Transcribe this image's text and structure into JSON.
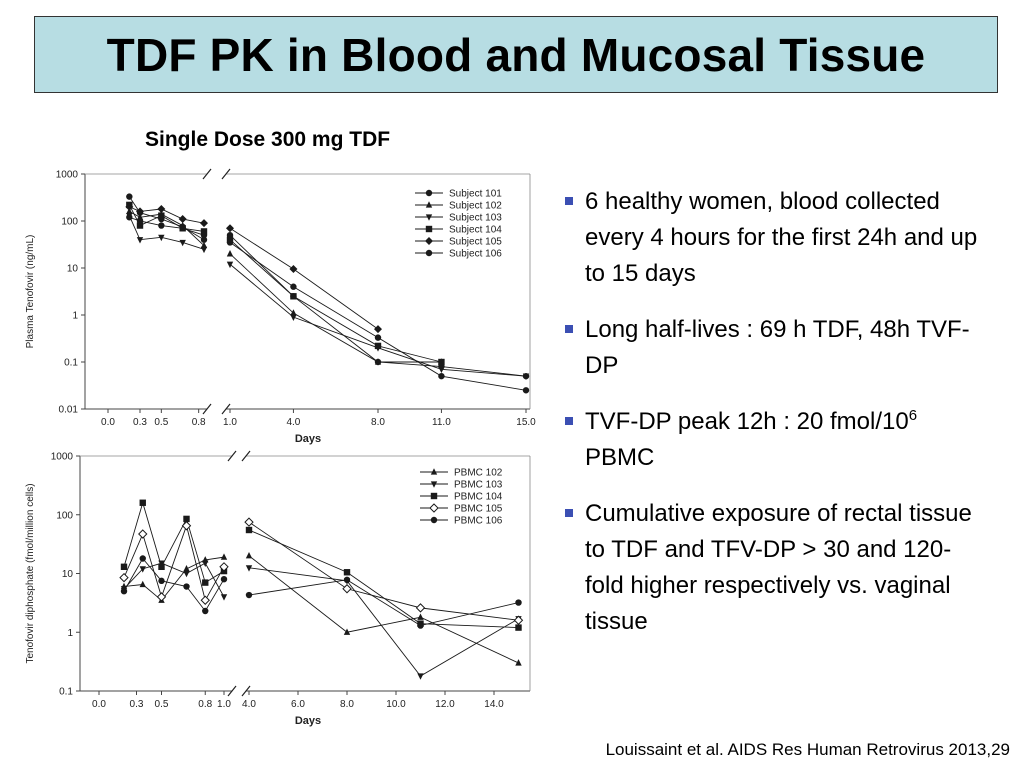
{
  "title": "TDF PK in Blood and Mucosal Tissue",
  "subtitle": "Single Dose 300 mg TDF",
  "bullets": [
    {
      "text": "6 healthy women, blood collected every 4 hours for the first 24h and up to 15 days"
    },
    {
      "text": "Long half-lives : 69 h TDF, 48h TVF-DP"
    },
    {
      "text_before": "TVF-DP peak 12h : 20 fmol/10",
      "sup": "6",
      "text_after": " PBMC"
    },
    {
      "text": "Cumulative exposure of rectal tissue to TDF and TFV-DP > 30 and 120-fold higher respectively vs. vaginal tissue"
    }
  ],
  "citation": "Louissaint et al. AIDS Res Human Retrovirus 2013,29",
  "colors": {
    "title_bg": "#b7dde3",
    "bullet": "#3b4fb3",
    "series": "#1a1a1a"
  },
  "chart_data": [
    {
      "type": "line",
      "ylabel": "Plasma Tenofovir (ng/mL)",
      "xlabel": "Days",
      "yscale": "log",
      "ylim": [
        0.01,
        1000
      ],
      "ytick_labels": [
        "1000",
        "100",
        "10",
        "1",
        "0.1",
        "0.01"
      ],
      "xaxis_break": "between 0.8 and 1.0",
      "x_left": [
        0.2,
        0.3,
        0.5,
        0.7,
        0.9
      ],
      "x_left_ticks": [
        "0.0",
        "0.3",
        "0.5",
        "0.8"
      ],
      "x_right": [
        1.0,
        4.0,
        8.0,
        11.0,
        15.0
      ],
      "x_right_ticks": [
        "1.0",
        "4.0",
        "8.0",
        "11.0",
        "15.0"
      ],
      "legend_position": "top-right",
      "series": [
        {
          "name": "Subject 101",
          "marker": "circle",
          "left": [
            330,
            150,
            110,
            75,
            40
          ],
          "right": [
            50,
            2.5,
            0.1,
            0.08,
            0.05
          ]
        },
        {
          "name": "Subject 102",
          "marker": "triangle-up",
          "left": [
            160,
            120,
            140,
            80,
            30
          ],
          "right": [
            20,
            1.1,
            0.1,
            0.1,
            null
          ]
        },
        {
          "name": "Subject 103",
          "marker": "triangle-down",
          "left": [
            130,
            40,
            45,
            35,
            25
          ],
          "right": [
            12,
            0.9,
            0.2,
            0.07,
            0.05
          ]
        },
        {
          "name": "Subject 104",
          "marker": "square",
          "left": [
            220,
            80,
            130,
            70,
            60
          ],
          "right": [
            40,
            2.5,
            0.22,
            0.1,
            null
          ]
        },
        {
          "name": "Subject 105",
          "marker": "diamond",
          "left": [
            200,
            160,
            180,
            110,
            90
          ],
          "right": [
            70,
            9.5,
            0.5,
            null,
            null
          ]
        },
        {
          "name": "Subject 106",
          "marker": "hexagon",
          "left": [
            120,
            100,
            80,
            70,
            50
          ],
          "right": [
            35,
            4,
            0.33,
            0.05,
            0.025
          ]
        }
      ]
    },
    {
      "type": "line",
      "ylabel": "Tenofovir diphosphate (fmol/million cells)",
      "xlabel": "Days",
      "yscale": "log",
      "ylim": [
        0.1,
        1000
      ],
      "ytick_labels": [
        "1000",
        "100",
        "10",
        "1",
        "0.1"
      ],
      "xaxis_break": "between 1.0 and 4.0",
      "x_left": [
        0.2,
        0.35,
        0.5,
        0.7,
        0.85,
        1.0
      ],
      "x_left_ticks": [
        "0.0",
        "0.3",
        "0.5",
        "0.8",
        "1.0"
      ],
      "x_right": [
        4.0,
        8.0,
        11.0,
        15.0
      ],
      "x_right_ticks": [
        "4.0",
        "6.0",
        "8.0",
        "10.0",
        "12.0",
        "14.0"
      ],
      "x_right_tick_values": [
        4,
        6,
        8,
        10,
        12,
        14
      ],
      "legend_position": "top-right",
      "series": [
        {
          "name": "PBMC 102",
          "marker": "triangle-up",
          "left": [
            6,
            6.5,
            3.5,
            12,
            17,
            19
          ],
          "right": [
            20,
            1,
            1.8,
            0.3
          ]
        },
        {
          "name": "PBMC 103",
          "marker": "triangle-down",
          "left": [
            5.5,
            12,
            15,
            10,
            15,
            4
          ],
          "right": [
            12.5,
            7.5,
            0.18,
            1.7
          ]
        },
        {
          "name": "PBMC 104",
          "marker": "square",
          "left": [
            13,
            160,
            13,
            85,
            7,
            11
          ],
          "right": [
            55,
            10.5,
            1.4,
            1.2
          ]
        },
        {
          "name": "PBMC 105",
          "marker": "diamond-open",
          "left": [
            8.5,
            47,
            4,
            65,
            3.5,
            13
          ],
          "right": [
            75,
            5.5,
            2.6,
            1.6
          ]
        },
        {
          "name": "PBMC 106",
          "marker": "circle",
          "left": [
            5,
            18,
            7.5,
            6,
            2.3,
            8
          ],
          "right": [
            4.3,
            7.8,
            1.3,
            3.2
          ]
        }
      ]
    }
  ]
}
